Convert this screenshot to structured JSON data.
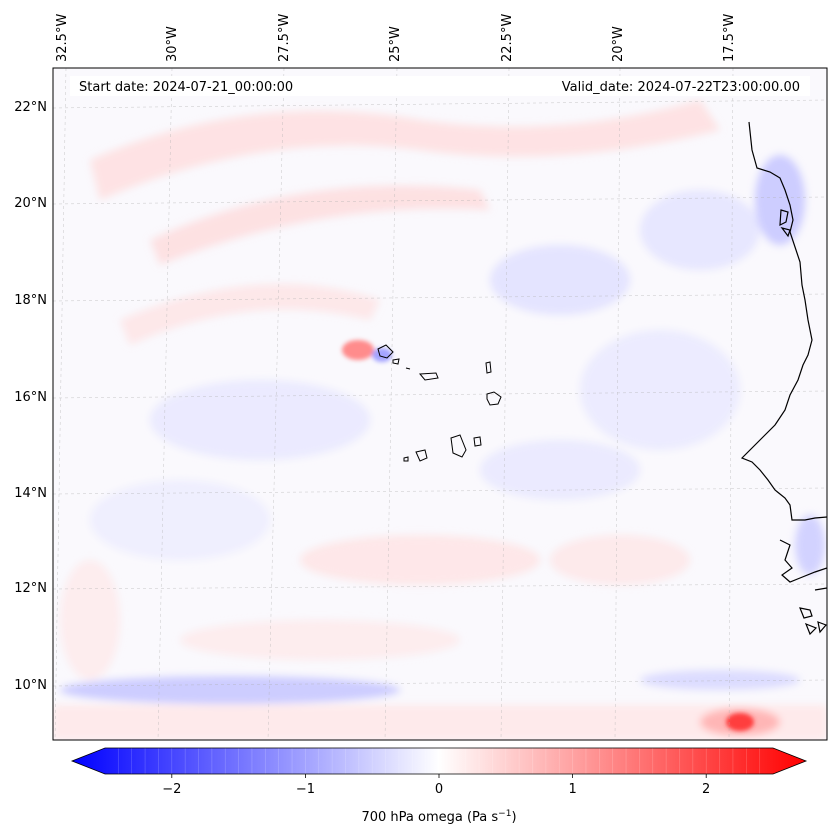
{
  "map": {
    "start_date": "Start date: 2024-07-21_00:00:00",
    "valid_date": "Valid_date: 2024-07-22T23:00:00.00",
    "lon_labels": [
      "32.5°W",
      "30°W",
      "27.5°W",
      "25°W",
      "22.5°W",
      "20°W",
      "17.5°W"
    ],
    "lat_labels": [
      "22°N",
      "20°N",
      "18°N",
      "16°N",
      "14°N",
      "12°N",
      "10°N"
    ],
    "colors": {
      "negative": "#0000ff",
      "zero": "#ffffff",
      "positive": "#ff0000",
      "coastline": "#000000",
      "gridline": "#b0b0b0"
    }
  },
  "colorbar": {
    "ticks": [
      "−2",
      "−1",
      "0",
      "1",
      "2"
    ],
    "tick_values": [
      -2,
      -1,
      0,
      1,
      2
    ],
    "range": [
      -2.5,
      2.5
    ],
    "label_main": "700 hPa omega (Pa s",
    "label_sup": "−1",
    "label_close": ")"
  }
}
